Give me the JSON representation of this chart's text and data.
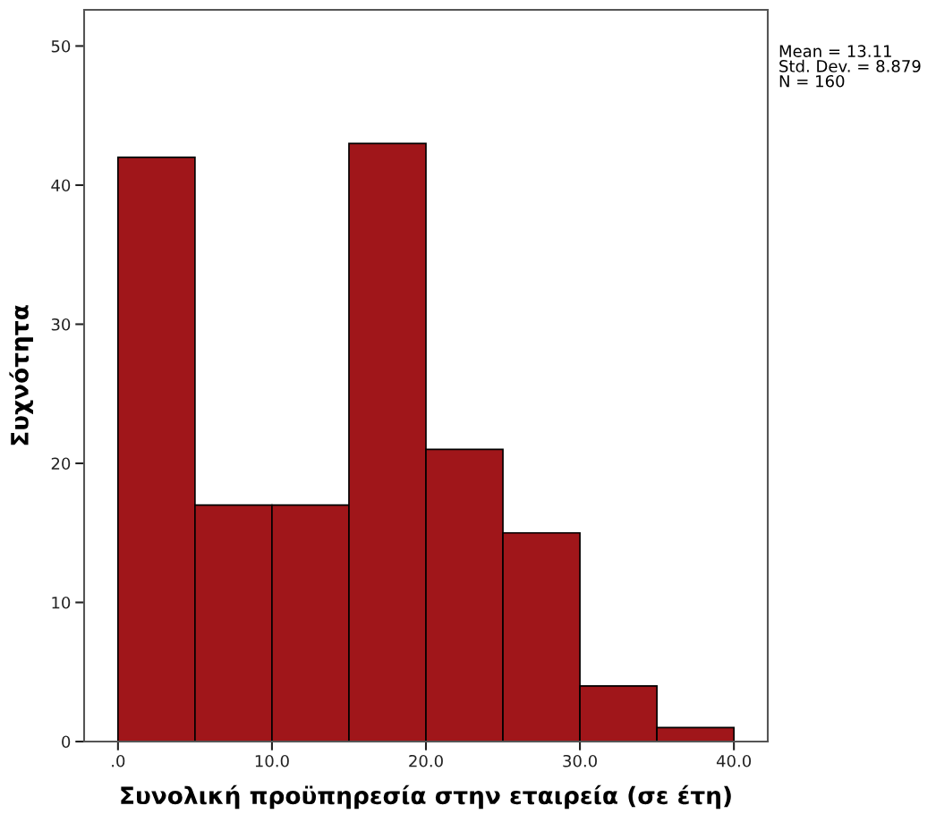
{
  "chart_data": {
    "type": "histogram",
    "xlabel": "Συνολική προϋπηρεσία στην εταιρεία (σε έτη)",
    "ylabel": "Συχνότητα",
    "bins": [
      0,
      5,
      10,
      15,
      20,
      25,
      30,
      35,
      40
    ],
    "values": [
      42,
      17,
      17,
      43,
      21,
      15,
      4,
      1
    ],
    "color": "#a0161a",
    "xlim": [
      -2.2,
      42.2
    ],
    "ylim": [
      0,
      52.6
    ],
    "xticks": [
      {
        "value": 0,
        "label": ".0"
      },
      {
        "value": 10,
        "label": "10.0"
      },
      {
        "value": 20,
        "label": "20.0"
      },
      {
        "value": 30,
        "label": "30.0"
      },
      {
        "value": 40,
        "label": "40.0"
      }
    ],
    "yticks": [
      0,
      10,
      20,
      30,
      40,
      50
    ],
    "grid": false,
    "annotations": [
      "Mean = 13.11\nStd. Dev. = 8.879\nN = 160"
    ]
  }
}
